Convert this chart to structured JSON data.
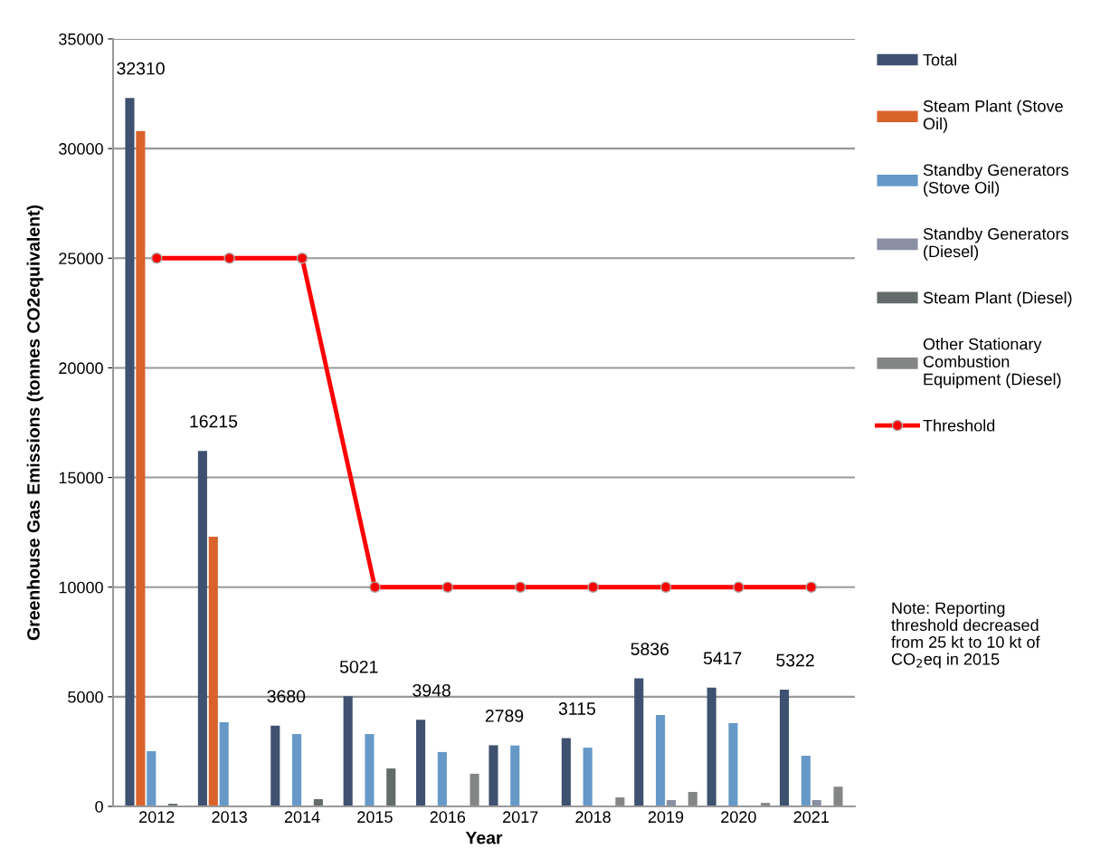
{
  "chart_data": {
    "type": "bar",
    "xlabel": "Year",
    "ylabel": "Greenhouse Gas Emissions (tonnes CO2equivalent)",
    "categories": [
      "2012",
      "2013",
      "2014",
      "2015",
      "2016",
      "2017",
      "2018",
      "2019",
      "2020",
      "2021"
    ],
    "series": [
      {
        "name": "Total",
        "color": "#3f5170",
        "values": [
          32310,
          16215,
          3680,
          5021,
          3948,
          2789,
          3115,
          5836,
          5417,
          5322
        ],
        "value_labels": [
          "32310",
          "16215",
          "3680",
          "5021",
          "3948",
          "2789",
          "3115",
          "5836",
          "5417",
          "5322"
        ]
      },
      {
        "name": "Steam Plant (Stove\nOil)",
        "color": "#d9632b",
        "values": [
          30800,
          12300,
          null,
          null,
          null,
          null,
          null,
          null,
          null,
          null
        ]
      },
      {
        "name": "Standby Generators\n(Stove Oil)",
        "color": "#6699c8",
        "values": [
          2520,
          3840,
          3300,
          3300,
          2480,
          2780,
          2680,
          4170,
          3800,
          2310
        ]
      },
      {
        "name": "Standby Generators\n(Diesel)",
        "color": "#8a8fa3",
        "values": [
          null,
          null,
          null,
          null,
          null,
          null,
          null,
          290,
          null,
          290
        ]
      },
      {
        "name": "Steam Plant (Diesel)",
        "color": "#646b6b",
        "values": [
          120,
          null,
          330,
          1730,
          null,
          null,
          null,
          null,
          null,
          null
        ]
      },
      {
        "name": "Other Stationary\nCombustion\nEquipment (Diesel)",
        "color": "#848686",
        "values": [
          null,
          null,
          null,
          null,
          1490,
          null,
          410,
          660,
          160,
          900
        ]
      },
      {
        "name": "Threshold",
        "type": "line",
        "color": "#ff0000",
        "marker": "circle",
        "values": [
          25000,
          25000,
          25000,
          10000,
          10000,
          10000,
          10000,
          10000,
          10000,
          10000
        ]
      }
    ],
    "ylim": [
      0,
      35000
    ],
    "yticks": [
      0,
      5000,
      10000,
      15000,
      20000,
      25000,
      30000,
      35000
    ],
    "grid": "y",
    "legend": "right",
    "annotations": [
      "Note: Reporting\nthreshold decreased\nfrom 25 kt to 10 kt of\nCO$_{2}$eq in 2015"
    ]
  }
}
